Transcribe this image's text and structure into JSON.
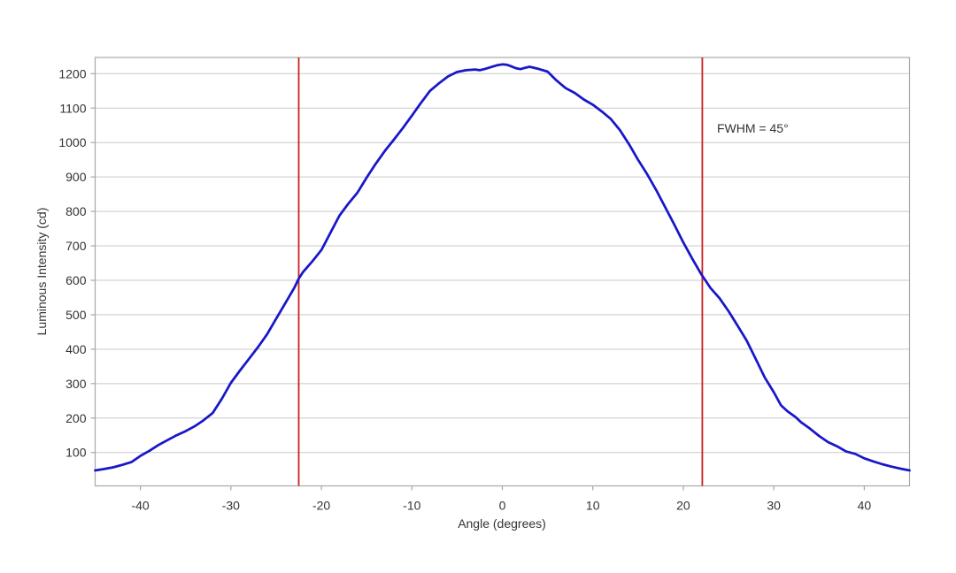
{
  "figure": {
    "background": "#ffffff",
    "plot_border_color": "#a8a8a8",
    "grid_color": "#c9c9c9",
    "text_color": "#333333"
  },
  "chart_data": {
    "type": "line",
    "title": "",
    "xlabel": "Angle (degrees)",
    "ylabel": "Luminous Intensity (cd)",
    "xlim": [
      -45,
      45
    ],
    "ylim": [
      3,
      1247
    ],
    "x_ticks": [
      -40,
      -30,
      -20,
      -10,
      0,
      10,
      20,
      30,
      40
    ],
    "y_ticks": [
      100,
      200,
      300,
      400,
      500,
      600,
      700,
      800,
      900,
      1000,
      1100,
      1200
    ],
    "grid": "horizontal-only",
    "legend": "none",
    "series": [
      {
        "name": "luminous-intensity",
        "color": "#1717c9",
        "line_width": 2.75,
        "points": [
          [
            -45,
            48
          ],
          [
            -44,
            52
          ],
          [
            -43,
            57
          ],
          [
            -42,
            64
          ],
          [
            -41,
            72
          ],
          [
            -40,
            90
          ],
          [
            -39,
            105
          ],
          [
            -38,
            122
          ],
          [
            -37,
            136
          ],
          [
            -36,
            150
          ],
          [
            -35,
            162
          ],
          [
            -34,
            176
          ],
          [
            -33,
            194
          ],
          [
            -32,
            215
          ],
          [
            -31,
            256
          ],
          [
            -30,
            302
          ],
          [
            -29,
            338
          ],
          [
            -28,
            372
          ],
          [
            -27,
            406
          ],
          [
            -26,
            443
          ],
          [
            -25,
            488
          ],
          [
            -24,
            533
          ],
          [
            -23,
            578
          ],
          [
            -22.5,
            605
          ],
          [
            -22,
            625
          ],
          [
            -21,
            655
          ],
          [
            -20,
            688
          ],
          [
            -19,
            738
          ],
          [
            -18,
            788
          ],
          [
            -17,
            823
          ],
          [
            -16,
            855
          ],
          [
            -15,
            898
          ],
          [
            -14,
            938
          ],
          [
            -13,
            975
          ],
          [
            -12,
            1008
          ],
          [
            -11,
            1042
          ],
          [
            -10,
            1078
          ],
          [
            -9,
            1115
          ],
          [
            -8,
            1150
          ],
          [
            -7,
            1172
          ],
          [
            -6,
            1192
          ],
          [
            -5,
            1205
          ],
          [
            -4,
            1210
          ],
          [
            -3,
            1212
          ],
          [
            -2.5,
            1210
          ],
          [
            -2,
            1213
          ],
          [
            -1,
            1221
          ],
          [
            -0.5,
            1225
          ],
          [
            0,
            1227
          ],
          [
            0.5,
            1226
          ],
          [
            1,
            1221
          ],
          [
            1.5,
            1216
          ],
          [
            2,
            1213
          ],
          [
            2.5,
            1217
          ],
          [
            3,
            1220
          ],
          [
            4,
            1214
          ],
          [
            5,
            1206
          ],
          [
            6,
            1180
          ],
          [
            7,
            1158
          ],
          [
            8,
            1144
          ],
          [
            9,
            1125
          ],
          [
            10,
            1110
          ],
          [
            11,
            1090
          ],
          [
            12,
            1068
          ],
          [
            13,
            1036
          ],
          [
            14,
            995
          ],
          [
            15,
            950
          ],
          [
            16,
            908
          ],
          [
            17,
            862
          ],
          [
            18,
            812
          ],
          [
            19,
            762
          ],
          [
            20,
            710
          ],
          [
            21,
            662
          ],
          [
            22,
            617
          ],
          [
            23,
            578
          ],
          [
            24,
            548
          ],
          [
            25,
            510
          ],
          [
            26,
            468
          ],
          [
            27,
            425
          ],
          [
            28,
            372
          ],
          [
            29,
            318
          ],
          [
            30,
            275
          ],
          [
            30.8,
            237
          ],
          [
            31.5,
            220
          ],
          [
            32.4,
            203
          ],
          [
            33,
            188
          ],
          [
            34,
            169
          ],
          [
            35,
            148
          ],
          [
            36,
            130
          ],
          [
            37,
            118
          ],
          [
            38,
            103
          ],
          [
            39,
            96
          ],
          [
            40,
            83
          ],
          [
            41,
            74
          ],
          [
            42,
            66
          ],
          [
            43,
            59
          ],
          [
            44,
            53
          ],
          [
            45,
            48
          ]
        ]
      }
    ],
    "markers": {
      "fwhm_lines": {
        "x": [
          -22.5,
          22.1
        ],
        "color": "#cc2222",
        "line_width": 1.8
      },
      "annotation": {
        "text": "FWHM = 45°",
        "x": 23.8,
        "y": 1041
      }
    }
  }
}
